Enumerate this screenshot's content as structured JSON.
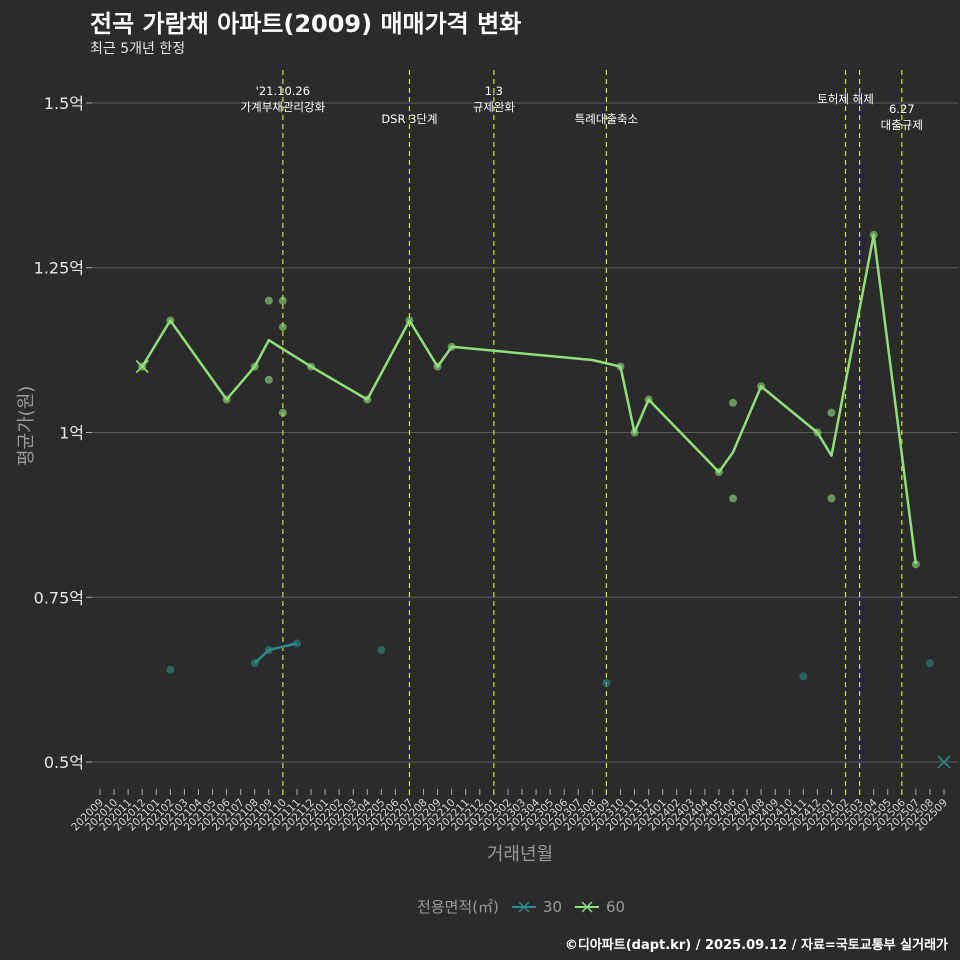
{
  "title": "전곡 가람채 아파트(2009) 매매가격 변화",
  "subtitle": "최근 5개년 한정",
  "caption": "©디아파트(dapt.kr) / 2025.09.12 / 자료=국토교통부 실거래가",
  "legend": {
    "title": "전용면적(㎡)",
    "items": [
      "30",
      "60"
    ]
  },
  "colors": {
    "s30": "#2a8a87",
    "s60": "#8fe07a",
    "event": "#d4e12a",
    "grid": "#5a5a5a",
    "text": "#e8e8e8"
  },
  "chart_data": {
    "type": "line",
    "xlabel": "거래년월",
    "ylabel": "평균가(원)",
    "x": [
      "202009",
      "202010",
      "202011",
      "202012",
      "202101",
      "202102",
      "202103",
      "202104",
      "202105",
      "202106",
      "202107",
      "202108",
      "202109",
      "202110",
      "202111",
      "202112",
      "202201",
      "202202",
      "202203",
      "202204",
      "202205",
      "202206",
      "202207",
      "202208",
      "202209",
      "202210",
      "202211",
      "202212",
      "202301",
      "202302",
      "202303",
      "202304",
      "202305",
      "202306",
      "202307",
      "202308",
      "202309",
      "202310",
      "202311",
      "202312",
      "202401",
      "202402",
      "202403",
      "202404",
      "202405",
      "202406",
      "202407",
      "202408",
      "202409",
      "202410",
      "202411",
      "202412",
      "202501",
      "202502",
      "202503",
      "202504",
      "202505",
      "202506",
      "202507",
      "202508",
      "202509"
    ],
    "yticks": [
      {
        "value": 0.5,
        "label": "0.5억"
      },
      {
        "value": 0.75,
        "label": "0.75억"
      },
      {
        "value": 1.0,
        "label": "1억"
      },
      {
        "value": 1.25,
        "label": "1.25억"
      },
      {
        "value": 1.5,
        "label": "1.5억"
      }
    ],
    "ylim": [
      0.45,
      1.55
    ],
    "series": [
      {
        "name": "30",
        "line": [
          [
            "202108",
            0.65
          ],
          [
            "202109",
            0.67
          ],
          [
            "202111",
            0.68
          ]
        ],
        "points": [
          [
            "202102",
            0.64
          ],
          [
            "202108",
            0.65
          ],
          [
            "202109",
            0.67
          ],
          [
            "202111",
            0.68
          ],
          [
            "202205",
            0.67
          ],
          [
            "202309",
            0.62
          ],
          [
            "202411",
            0.63
          ],
          [
            "202508",
            0.65
          ]
        ],
        "crosses": [
          [
            "202509",
            0.5
          ]
        ]
      },
      {
        "name": "60",
        "line": [
          [
            "202012",
            1.1
          ],
          [
            "202102",
            1.17
          ],
          [
            "202106",
            1.05
          ],
          [
            "202108",
            1.1
          ],
          [
            "202109",
            1.14
          ],
          [
            "202112",
            1.1
          ],
          [
            "202204",
            1.05
          ],
          [
            "202207",
            1.17
          ],
          [
            "202209",
            1.1
          ],
          [
            "202210",
            1.13
          ],
          [
            "202308",
            1.11
          ],
          [
            "202310",
            1.1
          ],
          [
            "202311",
            1.0
          ],
          [
            "202312",
            1.05
          ],
          [
            "202405",
            0.94
          ],
          [
            "202406",
            0.97
          ],
          [
            "202408",
            1.07
          ],
          [
            "202412",
            1.0
          ],
          [
            "202501",
            0.965
          ],
          [
            "202504",
            1.3
          ],
          [
            "202507",
            0.8
          ]
        ],
        "points": [
          [
            "202012",
            1.1
          ],
          [
            "202102",
            1.17
          ],
          [
            "202106",
            1.05
          ],
          [
            "202108",
            1.1
          ],
          [
            "202109",
            1.2
          ],
          [
            "202109",
            1.08
          ],
          [
            "202110",
            1.2
          ],
          [
            "202110",
            1.16
          ],
          [
            "202110",
            1.03
          ],
          [
            "202112",
            1.1
          ],
          [
            "202204",
            1.05
          ],
          [
            "202207",
            1.17
          ],
          [
            "202209",
            1.1
          ],
          [
            "202210",
            1.13
          ],
          [
            "202310",
            1.1
          ],
          [
            "202311",
            1.0
          ],
          [
            "202312",
            1.05
          ],
          [
            "202405",
            0.94
          ],
          [
            "202406",
            1.045
          ],
          [
            "202406",
            0.9
          ],
          [
            "202408",
            1.07
          ],
          [
            "202412",
            1.0
          ],
          [
            "202501",
            1.03
          ],
          [
            "202501",
            0.9
          ],
          [
            "202504",
            1.3
          ],
          [
            "202507",
            0.8
          ]
        ],
        "crosses": [
          [
            "202012",
            1.1
          ]
        ]
      }
    ],
    "events": [
      {
        "x": "202110",
        "lines": [
          "'21.10.26",
          "가계부채관리강화"
        ],
        "level": 0
      },
      {
        "x": "202207",
        "lines": [
          "DSR 3단계"
        ],
        "level": 2
      },
      {
        "x": "202301",
        "lines": [
          "1.3",
          "규제완화"
        ],
        "level": 0
      },
      {
        "x": "202309",
        "lines": [
          "특례대출축소"
        ],
        "level": 2
      },
      {
        "x": "202502",
        "lines": [
          "토허제 해제"
        ],
        "level": 1
      },
      {
        "x": "202503",
        "lines": [],
        "level": 1
      },
      {
        "x": "202506",
        "lines": [
          "6.27",
          "대출규제"
        ],
        "level": 1.5
      }
    ]
  }
}
